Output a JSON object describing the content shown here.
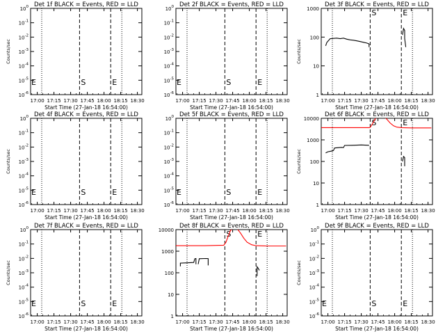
{
  "chart_data": [
    {
      "type": "line",
      "title": "Det 1f BLACK = Events, RED = LLD",
      "xlabel": "Start Time (27-Jan-18 16:54:00)",
      "ylabel": "Counts/sec",
      "x_tick_labels": [
        "17:00",
        "17:15",
        "17:30",
        "17:45",
        "18:00",
        "18:15",
        "18:30"
      ],
      "y_tick_labels": [
        "10^0",
        "10^-1",
        "10^-2",
        "10^-3",
        "10^-4",
        "10^-5",
        "10^-6"
      ],
      "y_ticks": [
        1,
        0.1,
        0.01,
        0.001,
        0.0001,
        1e-05,
        1e-06
      ],
      "y_scale": "log",
      "xlim": [
        "16:54",
        "18:34"
      ],
      "ylim": [
        1,
        1e-06
      ],
      "markers": [
        {
          "time": "17:04",
          "style": "dotted",
          "label": ""
        },
        {
          "time": "17:38",
          "style": "dashed",
          "label": "S"
        },
        {
          "time": "18:06",
          "style": "dashed",
          "label": "E"
        },
        {
          "time": "18:16",
          "style": "dotted",
          "label": ""
        },
        {
          "time": "16:54",
          "style": "none",
          "label": "E"
        }
      ],
      "series": []
    },
    {
      "type": "line",
      "title": "Det 2f BLACK = Events, RED = LLD",
      "xlabel": "Start Time (27-Jan-18 16:54:00)",
      "ylabel": "",
      "x_tick_labels": [
        "17:00",
        "17:15",
        "17:30",
        "17:45",
        "18:00",
        "18:15",
        "18:30"
      ],
      "y_tick_labels": [
        "10^0",
        "10^-1",
        "10^-2",
        "10^-3",
        "10^-4",
        "10^-5",
        "10^-6"
      ],
      "y_ticks": [
        1,
        0.1,
        0.01,
        0.001,
        0.0001,
        1e-05,
        1e-06
      ],
      "y_scale": "log",
      "xlim": [
        "16:54",
        "18:34"
      ],
      "ylim": [
        1,
        1e-06
      ],
      "markers": [
        {
          "time": "17:04",
          "style": "dotted",
          "label": ""
        },
        {
          "time": "17:38",
          "style": "dashed",
          "label": "S"
        },
        {
          "time": "18:06",
          "style": "dashed",
          "label": "E"
        },
        {
          "time": "18:16",
          "style": "dotted",
          "label": ""
        },
        {
          "time": "16:54",
          "style": "none",
          "label": "E"
        }
      ],
      "series": []
    },
    {
      "type": "line",
      "title": "Det 3f BLACK = Events, RED = LLD",
      "xlabel": "Start Time (27-Jan-18 16:54:00)",
      "ylabel": "Counts/sec",
      "x_tick_labels": [
        "17:00",
        "17:15",
        "17:30",
        "17:45",
        "18:00",
        "18:15",
        "18:30"
      ],
      "y_tick_labels": [
        "1000",
        "100",
        "10",
        "1"
      ],
      "y_ticks": [
        1000,
        100,
        10,
        1
      ],
      "y_scale": "log",
      "xlim": [
        "16:54",
        "18:34"
      ],
      "ylim": [
        1,
        1000
      ],
      "markers": [
        {
          "time": "17:04",
          "style": "dotted",
          "label": ""
        },
        {
          "time": "17:38",
          "style": "dashed",
          "label": "S"
        },
        {
          "time": "18:06",
          "style": "dashed",
          "label": "E"
        },
        {
          "time": "18:16",
          "style": "dotted",
          "label": ""
        }
      ],
      "series": [
        {
          "color": "#000000",
          "points": [
            [
              "16:58",
              50
            ],
            [
              "16:59",
              65
            ],
            [
              "17:00",
              72
            ],
            [
              "17:02",
              88
            ],
            [
              "17:05",
              90
            ],
            [
              "17:08",
              92
            ],
            [
              "17:11",
              88
            ],
            [
              "17:14",
              92
            ],
            [
              "17:17",
              85
            ],
            [
              "17:20",
              80
            ],
            [
              "17:23",
              78
            ],
            [
              "17:26",
              74
            ],
            [
              "17:29",
              70
            ],
            [
              "17:32",
              66
            ],
            [
              "17:35",
              62
            ],
            [
              "17:37",
              58
            ],
            [
              "17:37",
              45
            ]
          ]
        },
        {
          "color": "#000000",
          "points": [
            [
              "18:07",
              120
            ],
            [
              "18:08",
              200
            ],
            [
              "18:09",
              170
            ],
            [
              "18:09",
              90
            ],
            [
              "18:10",
              45
            ]
          ]
        }
      ]
    },
    {
      "type": "line",
      "title": "Det 4f BLACK = Events, RED = LLD",
      "xlabel": "Start Time (27-Jan-18 16:54:00)",
      "ylabel": "Counts/sec",
      "x_tick_labels": [
        "17:00",
        "17:15",
        "17:30",
        "17:45",
        "18:00",
        "18:15",
        "18:30"
      ],
      "y_tick_labels": [
        "10^0",
        "10^-1",
        "10^-2",
        "10^-3",
        "10^-4",
        "10^-5",
        "10^-6"
      ],
      "y_ticks": [
        1,
        0.1,
        0.01,
        0.001,
        0.0001,
        1e-05,
        1e-06
      ],
      "y_scale": "log",
      "xlim": [
        "16:54",
        "18:34"
      ],
      "ylim": [
        1,
        1e-06
      ],
      "markers": [
        {
          "time": "17:04",
          "style": "dotted",
          "label": ""
        },
        {
          "time": "17:38",
          "style": "dashed",
          "label": "S"
        },
        {
          "time": "18:06",
          "style": "dashed",
          "label": "E"
        },
        {
          "time": "18:16",
          "style": "dotted",
          "label": ""
        },
        {
          "time": "16:54",
          "style": "none",
          "label": "E"
        }
      ],
      "series": []
    },
    {
      "type": "line",
      "title": "Det 5f BLACK = Events, RED = LLD",
      "xlabel": "Start Time (27-Jan-18 16:54:00)",
      "ylabel": "",
      "x_tick_labels": [
        "17:00",
        "17:15",
        "17:30",
        "17:45",
        "18:00",
        "18:15",
        "18:30"
      ],
      "y_tick_labels": [
        "10^0",
        "10^-1",
        "10^-2",
        "10^-3",
        "10^-4",
        "10^-5",
        "10^-6"
      ],
      "y_ticks": [
        1,
        0.1,
        0.01,
        0.001,
        0.0001,
        1e-05,
        1e-06
      ],
      "y_scale": "log",
      "xlim": [
        "16:54",
        "18:34"
      ],
      "ylim": [
        1,
        1e-06
      ],
      "markers": [
        {
          "time": "17:04",
          "style": "dotted",
          "label": ""
        },
        {
          "time": "17:38",
          "style": "dashed",
          "label": "S"
        },
        {
          "time": "18:06",
          "style": "dashed",
          "label": "E"
        },
        {
          "time": "18:16",
          "style": "dotted",
          "label": ""
        },
        {
          "time": "16:54",
          "style": "none",
          "label": "E"
        }
      ],
      "series": []
    },
    {
      "type": "line",
      "title": "Det 6f BLACK = Events, RED = LLD",
      "xlabel": "Start Time (27-Jan-18 16:54:00)",
      "ylabel": "Counts/sec",
      "x_tick_labels": [
        "17:00",
        "17:15",
        "17:30",
        "17:45",
        "18:00",
        "18:15",
        "18:30"
      ],
      "y_tick_labels": [
        "10000",
        "1000",
        "100",
        "10",
        "1"
      ],
      "y_ticks": [
        10000,
        1000,
        100,
        10,
        1
      ],
      "y_scale": "log",
      "xlim": [
        "16:54",
        "18:34"
      ],
      "ylim": [
        1,
        10000
      ],
      "markers": [
        {
          "time": "17:04",
          "style": "dotted",
          "label": ""
        },
        {
          "time": "17:38",
          "style": "dashed",
          "label": "S"
        },
        {
          "time": "18:06",
          "style": "dashed",
          "label": "E"
        },
        {
          "time": "18:16",
          "style": "dotted",
          "label": ""
        }
      ],
      "series": [
        {
          "color": "#ff0000",
          "points": [
            [
              "16:54",
              3700
            ],
            [
              "16:58",
              3700
            ],
            [
              "17:10",
              3700
            ],
            [
              "17:20",
              3700
            ],
            [
              "17:30",
              3700
            ],
            [
              "17:37",
              3700
            ],
            [
              "17:38",
              3800
            ],
            [
              "17:40",
              5500
            ],
            [
              "17:42",
              8500
            ],
            [
              "17:44",
              12000
            ],
            [
              "17:47",
              13500
            ],
            [
              "17:50",
              12500
            ],
            [
              "17:53",
              9000
            ],
            [
              "17:56",
              6000
            ],
            [
              "17:59",
              4500
            ],
            [
              "18:02",
              3900
            ],
            [
              "18:06",
              3700
            ],
            [
              "18:15",
              3600
            ],
            [
              "18:25",
              3600
            ],
            [
              "18:33",
              3600
            ]
          ]
        },
        {
          "color": "#000000",
          "points": [
            [
              "16:58",
              250
            ],
            [
              "17:00",
              280
            ],
            [
              "17:03",
              300
            ],
            [
              "17:05",
              320
            ],
            [
              "17:06",
              420
            ],
            [
              "17:12",
              450
            ],
            [
              "17:14",
              440
            ],
            [
              "17:15",
              550
            ],
            [
              "17:22",
              560
            ],
            [
              "17:26",
              570
            ],
            [
              "17:30",
              580
            ],
            [
              "17:37",
              560
            ]
          ]
        },
        {
          "color": "#000000",
          "points": [
            [
              "18:07",
              100
            ],
            [
              "18:08",
              170
            ],
            [
              "18:09",
              150
            ],
            [
              "18:09",
              60
            ]
          ]
        }
      ]
    },
    {
      "type": "line",
      "title": "Det 7f BLACK = Events, RED = LLD",
      "xlabel": "Start Time (27-Jan-18 16:54:00)",
      "ylabel": "Counts/sec",
      "x_tick_labels": [
        "17:00",
        "17:15",
        "17:30",
        "17:45",
        "18:00",
        "18:15",
        "18:30"
      ],
      "y_tick_labels": [
        "10^0",
        "10^-1",
        "10^-2",
        "10^-3",
        "10^-4",
        "10^-5",
        "10^-6"
      ],
      "y_ticks": [
        1,
        0.1,
        0.01,
        0.001,
        0.0001,
        1e-05,
        1e-06
      ],
      "y_scale": "log",
      "xlim": [
        "16:54",
        "18:34"
      ],
      "ylim": [
        1,
        1e-06
      ],
      "markers": [
        {
          "time": "17:04",
          "style": "dotted",
          "label": ""
        },
        {
          "time": "17:38",
          "style": "dashed",
          "label": "S"
        },
        {
          "time": "18:06",
          "style": "dashed",
          "label": "E"
        },
        {
          "time": "18:16",
          "style": "dotted",
          "label": ""
        },
        {
          "time": "16:54",
          "style": "none",
          "label": "E"
        }
      ],
      "series": []
    },
    {
      "type": "line",
      "title": "Det 8f BLACK = Events, RED = LLD",
      "xlabel": "Start Time (27-Jan-18 16:54:00)",
      "ylabel": "",
      "x_tick_labels": [
        "17:00",
        "17:15",
        "17:30",
        "17:45",
        "18:00",
        "18:15",
        "18:30"
      ],
      "y_tick_labels": [
        "10000",
        "1000",
        "100",
        "10",
        "1"
      ],
      "y_ticks": [
        10000,
        1000,
        100,
        10,
        1
      ],
      "y_scale": "log",
      "xlim": [
        "16:54",
        "18:34"
      ],
      "ylim": [
        1,
        10000
      ],
      "markers": [
        {
          "time": "17:04",
          "style": "dotted",
          "label": ""
        },
        {
          "time": "17:38",
          "style": "dashed",
          "label": "S"
        },
        {
          "time": "18:06",
          "style": "dashed",
          "label": "E"
        },
        {
          "time": "18:16",
          "style": "dotted",
          "label": ""
        }
      ],
      "series": [
        {
          "color": "#ff0000",
          "points": [
            [
              "16:54",
              1800
            ],
            [
              "16:58",
              1800
            ],
            [
              "17:10",
              1800
            ],
            [
              "17:20",
              1800
            ],
            [
              "17:30",
              1850
            ],
            [
              "17:37",
              1900
            ],
            [
              "17:39",
              2600
            ],
            [
              "17:41",
              5000
            ],
            [
              "17:43",
              9000
            ],
            [
              "17:46",
              12000
            ],
            [
              "17:49",
              11000
            ],
            [
              "17:52",
              7000
            ],
            [
              "17:55",
              4000
            ],
            [
              "17:58",
              2600
            ],
            [
              "18:02",
              2000
            ],
            [
              "18:06",
              1800
            ],
            [
              "18:15",
              1750
            ],
            [
              "18:25",
              1750
            ],
            [
              "18:33",
              1750
            ]
          ]
        },
        {
          "color": "#000000",
          "points": [
            [
              "16:58",
              200
            ],
            [
              "16:58",
              280
            ],
            [
              "17:04",
              290
            ],
            [
              "17:10",
              300
            ],
            [
              "17:11",
              450
            ],
            [
              "17:12",
              460
            ],
            [
              "17:12",
              250
            ]
          ]
        },
        {
          "color": "#000000",
          "points": [
            [
              "17:14",
              250
            ],
            [
              "17:15",
              450
            ],
            [
              "17:21",
              460
            ],
            [
              "17:23",
              455
            ],
            [
              "17:23",
              220
            ]
          ]
        },
        {
          "color": "#000000",
          "points": [
            [
              "18:07",
              70
            ],
            [
              "18:07",
              190
            ],
            [
              "18:08",
              160
            ],
            [
              "18:09",
              130
            ]
          ]
        }
      ]
    },
    {
      "type": "line",
      "title": "Det 9f BLACK = Events, RED = LLD",
      "xlabel": "Start Time (27-Jan-18 16:54:00)",
      "ylabel": "Counts/sec",
      "x_tick_labels": [
        "17:00",
        "17:15",
        "17:30",
        "17:45",
        "18:00",
        "18:15",
        "18:30"
      ],
      "y_tick_labels": [
        "10^0",
        "10^-1",
        "10^-2",
        "10^-3",
        "10^-4",
        "10^-5",
        "10^-6"
      ],
      "y_ticks": [
        1,
        0.1,
        0.01,
        0.001,
        0.0001,
        1e-05,
        1e-06
      ],
      "y_scale": "log",
      "xlim": [
        "16:54",
        "18:34"
      ],
      "ylim": [
        1,
        1e-06
      ],
      "markers": [
        {
          "time": "17:04",
          "style": "dotted",
          "label": ""
        },
        {
          "time": "17:38",
          "style": "dashed",
          "label": "S"
        },
        {
          "time": "18:06",
          "style": "dashed",
          "label": "E"
        },
        {
          "time": "18:16",
          "style": "dotted",
          "label": ""
        },
        {
          "time": "16:54",
          "style": "none",
          "label": "E"
        }
      ],
      "series": []
    }
  ]
}
